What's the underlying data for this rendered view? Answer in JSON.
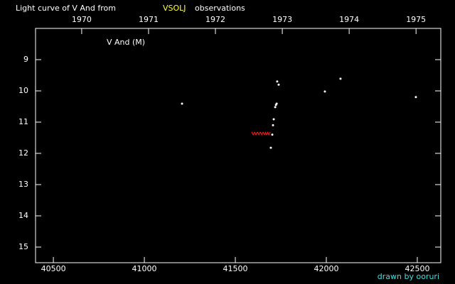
{
  "chart_data": {
    "type": "scatter",
    "title": "Light curve of V And from",
    "title_source": "VSOLJ",
    "title_suffix": "observations",
    "label": "V And (M)",
    "credit": "drawn by ooruri",
    "series": [
      {
        "color": "#ffffff",
        "marker": "dot",
        "x": [
          41207,
          41730,
          41738,
          41727,
          41723,
          41719,
          41711,
          41707,
          41703,
          41695,
          41992,
          42078,
          42492
        ],
        "values": [
          10.41,
          9.7,
          9.8,
          10.41,
          10.45,
          10.52,
          10.91,
          11.1,
          11.4,
          11.82,
          10.02,
          9.61,
          10.2
        ]
      },
      {
        "color": "#ff2020",
        "marker": "fainter",
        "x": [
          41598,
          41613,
          41629,
          41645,
          41660,
          41672,
          41684
        ],
        "values": [
          11.36,
          11.36,
          11.36,
          11.36,
          11.36,
          11.36,
          11.36
        ]
      }
    ],
    "xlim": [
      40402,
      42629
    ],
    "xticks": [
      40500,
      41000,
      41500,
      42000,
      42500
    ],
    "x2lim": [
      1969.31,
      1975.37
    ],
    "x2ticks": [
      1970,
      1971,
      1972,
      1973,
      1974,
      1975
    ],
    "ylim": [
      8,
      15.5
    ],
    "y_inverted": true,
    "yticks": [
      9,
      10,
      11,
      12,
      13,
      14,
      15
    ],
    "background": "#000000",
    "axis_color": "#ffffff"
  }
}
